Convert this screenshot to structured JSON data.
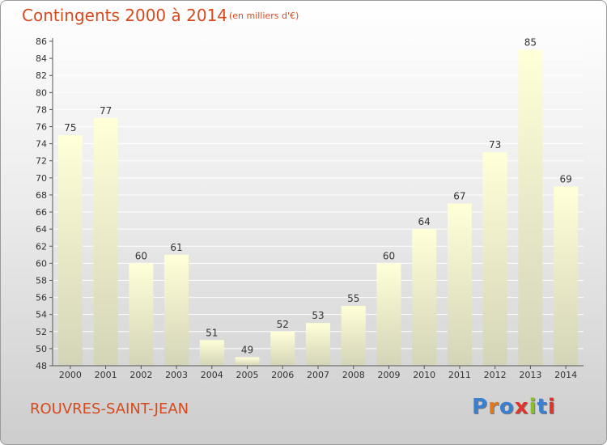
{
  "header": {
    "title": "Contingents 2000 à 2014",
    "subtitle": "(en milliers d'€)"
  },
  "footer": {
    "commune": "ROUVRES-SAINT-JEAN",
    "logo": "Proxiti"
  },
  "colors": {
    "title": "#d64a1e",
    "bar_top": "#ffffd8",
    "bar_bottom": "#d4d4b8",
    "axis": "#555555"
  },
  "chart_data": {
    "type": "bar",
    "title": "Contingents 2000 à 2014",
    "subtitle": "(en milliers d'€)",
    "xlabel": "",
    "ylabel": "",
    "ylim": [
      48,
      86
    ],
    "ytick_step": 2,
    "grid": true,
    "categories": [
      "2000",
      "2001",
      "2002",
      "2003",
      "2004",
      "2005",
      "2006",
      "2007",
      "2008",
      "2009",
      "2010",
      "2011",
      "2012",
      "2013",
      "2014"
    ],
    "values": [
      75,
      77,
      60,
      61,
      51,
      49,
      52,
      53,
      55,
      60,
      64,
      67,
      73,
      85,
      69
    ]
  }
}
